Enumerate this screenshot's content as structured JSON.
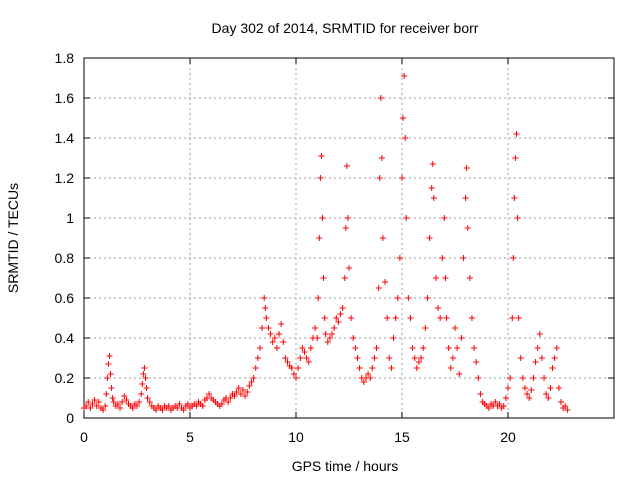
{
  "chart_data": {
    "type": "scatter",
    "title": "Day 302 of 2014, SRMTID for receiver borr",
    "xlabel": "GPS time / hours",
    "ylabel": "SRMTID / TECUs",
    "xlim": [
      0,
      25
    ],
    "ylim": [
      0,
      1.8
    ],
    "xticks": [
      0,
      5,
      10,
      15,
      20
    ],
    "xtick_labels": [
      "0",
      "5",
      "10",
      "15",
      "20"
    ],
    "yticks": [
      0,
      0.2,
      0.4,
      0.6,
      0.8,
      1.0,
      1.2,
      1.4,
      1.6,
      1.8
    ],
    "ytick_labels": [
      "0",
      "0.2",
      "0.4",
      "0.6",
      "0.8",
      "1",
      "1.2",
      "1.4",
      "1.6",
      "1.8"
    ],
    "grid": true,
    "marker": "+",
    "series": [
      {
        "name": "SRMTID",
        "color": "#ff0000",
        "points": [
          [
            0.0,
            0.05
          ],
          [
            0.1,
            0.06
          ],
          [
            0.2,
            0.08
          ],
          [
            0.3,
            0.05
          ],
          [
            0.4,
            0.07
          ],
          [
            0.5,
            0.09
          ],
          [
            0.6,
            0.06
          ],
          [
            0.7,
            0.08
          ],
          [
            0.8,
            0.05
          ],
          [
            0.9,
            0.04
          ],
          [
            1.0,
            0.06
          ],
          [
            1.05,
            0.12
          ],
          [
            1.1,
            0.2
          ],
          [
            1.15,
            0.27
          ],
          [
            1.2,
            0.31
          ],
          [
            1.25,
            0.22
          ],
          [
            1.3,
            0.15
          ],
          [
            1.35,
            0.1
          ],
          [
            1.4,
            0.08
          ],
          [
            1.5,
            0.06
          ],
          [
            1.6,
            0.07
          ],
          [
            1.7,
            0.05
          ],
          [
            1.8,
            0.08
          ],
          [
            1.9,
            0.11
          ],
          [
            2.0,
            0.09
          ],
          [
            2.1,
            0.07
          ],
          [
            2.2,
            0.06
          ],
          [
            2.3,
            0.05
          ],
          [
            2.4,
            0.07
          ],
          [
            2.5,
            0.06
          ],
          [
            2.6,
            0.08
          ],
          [
            2.7,
            0.12
          ],
          [
            2.75,
            0.17
          ],
          [
            2.8,
            0.22
          ],
          [
            2.85,
            0.25
          ],
          [
            2.9,
            0.2
          ],
          [
            2.95,
            0.15
          ],
          [
            3.0,
            0.1
          ],
          [
            3.1,
            0.08
          ],
          [
            3.2,
            0.06
          ],
          [
            3.3,
            0.05
          ],
          [
            3.4,
            0.04
          ],
          [
            3.5,
            0.06
          ],
          [
            3.6,
            0.05
          ],
          [
            3.7,
            0.04
          ],
          [
            3.8,
            0.06
          ],
          [
            3.9,
            0.05
          ],
          [
            4.0,
            0.06
          ],
          [
            4.1,
            0.04
          ],
          [
            4.2,
            0.05
          ],
          [
            4.3,
            0.06
          ],
          [
            4.4,
            0.05
          ],
          [
            4.5,
            0.07
          ],
          [
            4.6,
            0.05
          ],
          [
            4.7,
            0.04
          ],
          [
            4.8,
            0.06
          ],
          [
            4.9,
            0.07
          ],
          [
            5.0,
            0.05
          ],
          [
            5.1,
            0.06
          ],
          [
            5.2,
            0.07
          ],
          [
            5.3,
            0.06
          ],
          [
            5.4,
            0.08
          ],
          [
            5.5,
            0.07
          ],
          [
            5.6,
            0.06
          ],
          [
            5.7,
            0.09
          ],
          [
            5.8,
            0.1
          ],
          [
            5.9,
            0.12
          ],
          [
            6.0,
            0.1
          ],
          [
            6.1,
            0.09
          ],
          [
            6.2,
            0.08
          ],
          [
            6.3,
            0.07
          ],
          [
            6.4,
            0.06
          ],
          [
            6.5,
            0.07
          ],
          [
            6.6,
            0.09
          ],
          [
            6.7,
            0.1
          ],
          [
            6.8,
            0.08
          ],
          [
            6.9,
            0.1
          ],
          [
            7.0,
            0.12
          ],
          [
            7.1,
            0.11
          ],
          [
            7.2,
            0.13
          ],
          [
            7.3,
            0.15
          ],
          [
            7.4,
            0.12
          ],
          [
            7.5,
            0.14
          ],
          [
            7.6,
            0.11
          ],
          [
            7.7,
            0.13
          ],
          [
            7.8,
            0.16
          ],
          [
            7.9,
            0.18
          ],
          [
            8.0,
            0.2
          ],
          [
            8.1,
            0.25
          ],
          [
            8.2,
            0.3
          ],
          [
            8.3,
            0.35
          ],
          [
            8.4,
            0.45
          ],
          [
            8.5,
            0.6
          ],
          [
            8.55,
            0.55
          ],
          [
            8.6,
            0.5
          ],
          [
            8.7,
            0.45
          ],
          [
            8.8,
            0.42
          ],
          [
            8.9,
            0.38
          ],
          [
            9.0,
            0.4
          ],
          [
            9.1,
            0.35
          ],
          [
            9.2,
            0.42
          ],
          [
            9.3,
            0.47
          ],
          [
            9.4,
            0.38
          ],
          [
            9.5,
            0.3
          ],
          [
            9.6,
            0.28
          ],
          [
            9.7,
            0.26
          ],
          [
            9.8,
            0.25
          ],
          [
            9.9,
            0.22
          ],
          [
            10.0,
            0.2
          ],
          [
            10.1,
            0.25
          ],
          [
            10.2,
            0.3
          ],
          [
            10.3,
            0.35
          ],
          [
            10.4,
            0.33
          ],
          [
            10.5,
            0.3
          ],
          [
            10.6,
            0.28
          ],
          [
            10.7,
            0.35
          ],
          [
            10.8,
            0.4
          ],
          [
            10.9,
            0.45
          ],
          [
            11.0,
            0.4
          ],
          [
            11.05,
            0.6
          ],
          [
            11.1,
            0.9
          ],
          [
            11.15,
            1.2
          ],
          [
            11.2,
            1.31
          ],
          [
            11.25,
            1.0
          ],
          [
            11.3,
            0.7
          ],
          [
            11.35,
            0.5
          ],
          [
            11.4,
            0.42
          ],
          [
            11.5,
            0.38
          ],
          [
            11.6,
            0.4
          ],
          [
            11.7,
            0.42
          ],
          [
            11.8,
            0.45
          ],
          [
            11.9,
            0.5
          ],
          [
            12.0,
            0.48
          ],
          [
            12.1,
            0.52
          ],
          [
            12.2,
            0.55
          ],
          [
            12.3,
            0.7
          ],
          [
            12.35,
            0.95
          ],
          [
            12.4,
            1.26
          ],
          [
            12.45,
            1.0
          ],
          [
            12.5,
            0.75
          ],
          [
            12.6,
            0.5
          ],
          [
            12.7,
            0.4
          ],
          [
            12.8,
            0.35
          ],
          [
            12.9,
            0.3
          ],
          [
            13.0,
            0.25
          ],
          [
            13.1,
            0.2
          ],
          [
            13.2,
            0.18
          ],
          [
            13.3,
            0.2
          ],
          [
            13.4,
            0.22
          ],
          [
            13.5,
            0.2
          ],
          [
            13.6,
            0.25
          ],
          [
            13.7,
            0.3
          ],
          [
            13.8,
            0.35
          ],
          [
            13.9,
            0.65
          ],
          [
            13.95,
            1.2
          ],
          [
            14.0,
            1.6
          ],
          [
            14.05,
            1.3
          ],
          [
            14.1,
            0.9
          ],
          [
            14.2,
            0.68
          ],
          [
            14.3,
            0.5
          ],
          [
            14.4,
            0.3
          ],
          [
            14.5,
            0.25
          ],
          [
            14.6,
            0.4
          ],
          [
            14.7,
            0.5
          ],
          [
            14.8,
            0.6
          ],
          [
            14.9,
            0.8
          ],
          [
            15.0,
            1.2
          ],
          [
            15.05,
            1.5
          ],
          [
            15.1,
            1.71
          ],
          [
            15.15,
            1.4
          ],
          [
            15.2,
            1.0
          ],
          [
            15.3,
            0.6
          ],
          [
            15.4,
            0.5
          ],
          [
            15.5,
            0.35
          ],
          [
            15.6,
            0.3
          ],
          [
            15.7,
            0.25
          ],
          [
            15.8,
            0.28
          ],
          [
            15.9,
            0.3
          ],
          [
            16.0,
            0.35
          ],
          [
            16.1,
            0.45
          ],
          [
            16.2,
            0.6
          ],
          [
            16.3,
            0.9
          ],
          [
            16.4,
            1.15
          ],
          [
            16.45,
            1.27
          ],
          [
            16.5,
            1.1
          ],
          [
            16.6,
            0.7
          ],
          [
            16.7,
            0.55
          ],
          [
            16.8,
            0.5
          ],
          [
            16.9,
            0.8
          ],
          [
            17.0,
            1.0
          ],
          [
            17.05,
            0.7
          ],
          [
            17.1,
            0.5
          ],
          [
            17.2,
            0.35
          ],
          [
            17.3,
            0.25
          ],
          [
            17.4,
            0.3
          ],
          [
            17.5,
            0.45
          ],
          [
            17.6,
            0.35
          ],
          [
            17.7,
            0.22
          ],
          [
            17.8,
            0.4
          ],
          [
            17.9,
            0.8
          ],
          [
            18.0,
            1.1
          ],
          [
            18.05,
            1.25
          ],
          [
            18.1,
            0.95
          ],
          [
            18.2,
            0.7
          ],
          [
            18.3,
            0.5
          ],
          [
            18.4,
            0.35
          ],
          [
            18.5,
            0.28
          ],
          [
            18.6,
            0.2
          ],
          [
            18.7,
            0.12
          ],
          [
            18.8,
            0.08
          ],
          [
            18.9,
            0.07
          ],
          [
            19.0,
            0.06
          ],
          [
            19.1,
            0.05
          ],
          [
            19.2,
            0.07
          ],
          [
            19.3,
            0.06
          ],
          [
            19.4,
            0.08
          ],
          [
            19.5,
            0.06
          ],
          [
            19.6,
            0.07
          ],
          [
            19.7,
            0.05
          ],
          [
            19.8,
            0.06
          ],
          [
            19.9,
            0.1
          ],
          [
            20.0,
            0.15
          ],
          [
            20.1,
            0.2
          ],
          [
            20.2,
            0.5
          ],
          [
            20.25,
            0.8
          ],
          [
            20.3,
            1.1
          ],
          [
            20.35,
            1.3
          ],
          [
            20.4,
            1.42
          ],
          [
            20.45,
            1.0
          ],
          [
            20.5,
            0.5
          ],
          [
            20.6,
            0.3
          ],
          [
            20.7,
            0.2
          ],
          [
            20.8,
            0.15
          ],
          [
            20.9,
            0.12
          ],
          [
            21.0,
            0.1
          ],
          [
            21.1,
            0.14
          ],
          [
            21.2,
            0.2
          ],
          [
            21.3,
            0.28
          ],
          [
            21.4,
            0.35
          ],
          [
            21.5,
            0.42
          ],
          [
            21.6,
            0.3
          ],
          [
            21.7,
            0.2
          ],
          [
            21.8,
            0.12
          ],
          [
            21.9,
            0.1
          ],
          [
            22.0,
            0.15
          ],
          [
            22.1,
            0.25
          ],
          [
            22.2,
            0.3
          ],
          [
            22.3,
            0.35
          ],
          [
            22.4,
            0.15
          ],
          [
            22.5,
            0.08
          ],
          [
            22.6,
            0.05
          ],
          [
            22.7,
            0.06
          ],
          [
            22.8,
            0.04
          ]
        ]
      }
    ]
  }
}
